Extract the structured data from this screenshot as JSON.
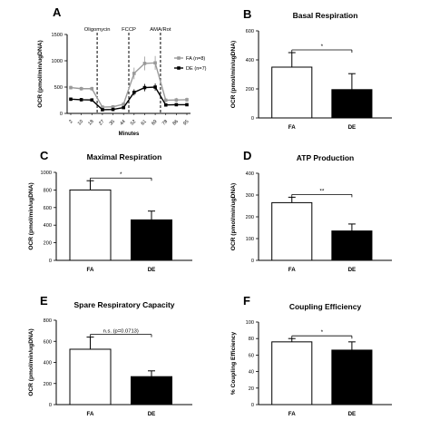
{
  "chart_data": [
    {
      "panel": "A",
      "type": "line",
      "title": "",
      "xlabel": "Minutes",
      "ylabel": "OCR (pmol/min/ugDNA)",
      "ylim": [
        0,
        1500
      ],
      "yticks": [
        0,
        500,
        1000,
        1500
      ],
      "x": [
        "2",
        "10",
        "18",
        "27",
        "35",
        "44",
        "52",
        "61",
        "69",
        "78",
        "86",
        "95"
      ],
      "annotations": [
        "Oligomycin",
        "FCCP",
        "AMA/Rot"
      ],
      "series": [
        {
          "name": "FA (n=8)",
          "color": "#9a9a9a",
          "marker": "square",
          "values": [
            490,
            470,
            470,
            120,
            125,
            175,
            760,
            950,
            960,
            250,
            255,
            260
          ],
          "err": [
            35,
            35,
            35,
            20,
            20,
            25,
            110,
            130,
            130,
            40,
            40,
            40
          ]
        },
        {
          "name": "DE (n=7)",
          "color": "#000000",
          "marker": "square",
          "values": [
            270,
            260,
            255,
            70,
            75,
            110,
            400,
            490,
            500,
            160,
            165,
            165
          ],
          "err": [
            30,
            30,
            30,
            15,
            15,
            20,
            60,
            70,
            70,
            25,
            25,
            25
          ]
        }
      ]
    },
    {
      "panel": "B",
      "type": "bar",
      "title": "Basal Respiration",
      "ylabel": "OCR (pmol/min/ugDNA)",
      "ylim": [
        0,
        600
      ],
      "yticks": [
        0,
        200,
        400,
        600
      ],
      "categories": [
        "FA",
        "DE"
      ],
      "values": [
        350,
        195
      ],
      "err": [
        100,
        110
      ],
      "significance": "*"
    },
    {
      "panel": "C",
      "type": "bar",
      "title": "Maximal Respiration",
      "ylabel": "OCR (pmol/min/ugDNA)",
      "ylim": [
        0,
        1000
      ],
      "yticks": [
        0,
        200,
        400,
        600,
        800,
        1000
      ],
      "categories": [
        "FA",
        "DE"
      ],
      "values": [
        800,
        460
      ],
      "err": [
        105,
        100
      ],
      "significance": "*"
    },
    {
      "panel": "D",
      "type": "bar",
      "title": "ATP Production",
      "ylabel": "OCR (pmol/min/ugDNA)",
      "ylim": [
        0,
        400
      ],
      "yticks": [
        0,
        100,
        200,
        300,
        400
      ],
      "categories": [
        "FA",
        "DE"
      ],
      "values": [
        265,
        135
      ],
      "err": [
        25,
        32
      ],
      "significance": "**"
    },
    {
      "panel": "E",
      "type": "bar",
      "title": "Spare Respiratory Capacity",
      "ylabel": "OCR (pmol/min/ugDNA)",
      "ylim": [
        0,
        800
      ],
      "yticks": [
        0,
        200,
        400,
        600,
        800
      ],
      "categories": [
        "FA",
        "DE"
      ],
      "values": [
        525,
        265
      ],
      "err": [
        115,
        55
      ],
      "significance": "n.s. (p=0.0713)"
    },
    {
      "panel": "F",
      "type": "bar",
      "title": "Coupling Efficiency",
      "ylabel": "% Coupling Efficiency",
      "ylim": [
        0,
        100
      ],
      "yticks": [
        0,
        20,
        40,
        60,
        80,
        100
      ],
      "categories": [
        "FA",
        "DE"
      ],
      "values": [
        76,
        66
      ],
      "err": [
        4,
        10
      ],
      "significance": "*"
    }
  ]
}
